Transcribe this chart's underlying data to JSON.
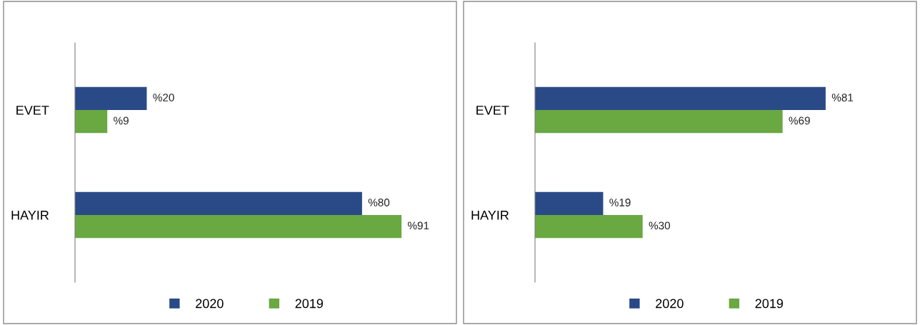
{
  "chart_data": [
    {
      "type": "bar",
      "orientation": "horizontal",
      "categories": [
        "EVET",
        "HAYIR"
      ],
      "tick_labels": "y",
      "legend": "bottom",
      "grid": false,
      "series": [
        {
          "name": "2020",
          "color": "#2a4a87",
          "values": [
            20,
            80
          ],
          "value_labels": [
            "%20",
            "%80"
          ]
        },
        {
          "name": "2019",
          "color": "#6aa842",
          "values": [
            9,
            91
          ],
          "value_labels": [
            "%9",
            "%91"
          ]
        }
      ]
    },
    {
      "type": "bar",
      "orientation": "horizontal",
      "categories": [
        "EVET",
        "HAYIR"
      ],
      "tick_labels": "y",
      "legend": "bottom",
      "grid": false,
      "series": [
        {
          "name": "2020",
          "color": "#2a4a87",
          "values": [
            81,
            19
          ],
          "value_labels": [
            "%81",
            "%19"
          ]
        },
        {
          "name": "2019",
          "color": "#6aa842",
          "values": [
            69,
            30
          ],
          "value_labels": [
            "%69",
            "%30"
          ]
        }
      ]
    }
  ]
}
